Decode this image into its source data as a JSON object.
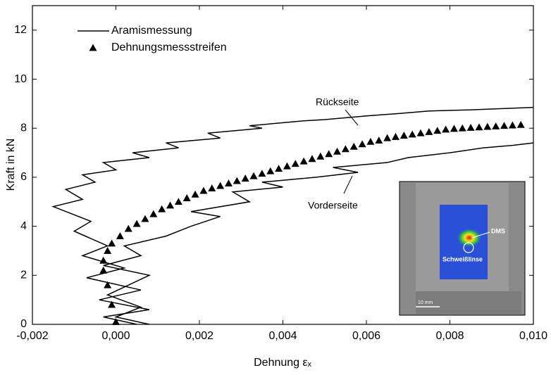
{
  "chart_data": {
    "type": "line",
    "x_label": "Dehnung εₓ",
    "y_label": "Kraft in kN",
    "xlim": [
      -0.002,
      0.01
    ],
    "ylim": [
      0,
      13
    ],
    "xticks": [
      {
        "value": -0.002,
        "label": "-0,002"
      },
      {
        "value": 0,
        "label": "0,000"
      },
      {
        "value": 0.002,
        "label": "0,002"
      },
      {
        "value": 0.004,
        "label": "0,004"
      },
      {
        "value": 0.006,
        "label": "0,006"
      },
      {
        "value": 0.008,
        "label": "0,008"
      },
      {
        "value": 0.01,
        "label": "0,010"
      }
    ],
    "yticks": [
      0,
      2,
      4,
      6,
      8,
      10,
      12
    ],
    "legend": "top-left",
    "annotations": [
      "Rückseite",
      "Vorderseite",
      "DMS",
      "Schweißlinse",
      "10 mm"
    ],
    "series": [
      {
        "name": "Aramismessung",
        "type": "line",
        "color": "#000000",
        "x": [
          0.0005,
          -0.0003,
          0.0008,
          -0.0004,
          0.0006,
          -0.0007,
          0.0002,
          -0.0008,
          -0.0002,
          -0.001,
          -0.0006,
          -0.0015,
          -0.0008,
          -0.0012,
          -0.0005,
          -0.0008,
          0.0,
          -0.0003,
          0.0008,
          0.0004,
          0.0015,
          0.0012,
          0.0025,
          0.0022,
          0.0035,
          0.0032,
          0.0045,
          0.005,
          0.006,
          0.0068,
          0.0075,
          0.0085,
          0.01,
          null,
          0.0008,
          0.0,
          0.0006,
          -0.0002,
          0.0008,
          -0.0003,
          0.0006,
          0.0002,
          0.0012,
          0.0018,
          0.0025,
          0.0018,
          0.0032,
          0.0028,
          0.004,
          0.0035,
          0.0048,
          0.0058,
          0.0052,
          0.0065,
          0.007,
          0.008,
          0.0088,
          0.0095,
          0.01
        ],
        "values": [
          0,
          0.3,
          0.6,
          1.0,
          1.4,
          1.9,
          2.3,
          2.8,
          3.2,
          3.8,
          4.2,
          4.8,
          5.1,
          5.5,
          5.8,
          6.1,
          6.3,
          6.6,
          6.8,
          7.0,
          7.2,
          7.4,
          7.6,
          7.8,
          8.0,
          8.1,
          8.3,
          8.35,
          8.5,
          8.6,
          8.7,
          8.75,
          8.85,
          null,
          0,
          0.3,
          0.7,
          1.2,
          2.0,
          2.4,
          2.8,
          3.2,
          3.6,
          4.0,
          4.4,
          4.6,
          5.0,
          5.4,
          5.6,
          5.8,
          6.0,
          6.2,
          6.4,
          6.6,
          6.8,
          7.0,
          7.2,
          7.3,
          7.4
        ]
      },
      {
        "name": "Dehnungsmessstreifen",
        "type": "scatter",
        "marker": "triangle",
        "color": "#000000",
        "x": [
          0.0,
          -0.0001,
          -0.0002,
          -0.0003,
          -0.0003,
          -0.0002,
          -0.0001,
          0.0001,
          0.0003,
          0.0005,
          0.0007,
          0.0009,
          0.0011,
          0.0013,
          0.0015,
          0.0017,
          0.0019,
          0.0021,
          0.0023,
          0.0025,
          0.0027,
          0.0029,
          0.0031,
          0.0033,
          0.0035,
          0.0037,
          0.0039,
          0.0041,
          0.0043,
          0.0045,
          0.0047,
          0.0049,
          0.0051,
          0.0053,
          0.0055,
          0.0057,
          0.0059,
          0.0061,
          0.0063,
          0.0065,
          0.0067,
          0.0069,
          0.0071,
          0.0073,
          0.0075,
          0.0077,
          0.0079,
          0.0081,
          0.0083,
          0.0085,
          0.0087,
          0.0089,
          0.0091,
          0.0093,
          0.0095,
          0.0097
        ],
        "values": [
          0.1,
          0.8,
          1.6,
          2.2,
          2.6,
          3.0,
          3.3,
          3.6,
          3.9,
          4.1,
          4.3,
          4.5,
          4.7,
          4.85,
          5.0,
          5.15,
          5.3,
          5.45,
          5.55,
          5.65,
          5.75,
          5.85,
          5.95,
          6.05,
          6.15,
          6.25,
          6.35,
          6.45,
          6.55,
          6.65,
          6.75,
          6.85,
          6.95,
          7.05,
          7.15,
          7.25,
          7.35,
          7.45,
          7.5,
          7.6,
          7.65,
          7.7,
          7.75,
          7.8,
          7.85,
          7.9,
          7.95,
          7.98,
          8.0,
          8.02,
          8.04,
          8.06,
          8.08,
          8.1,
          8.12,
          8.14
        ]
      }
    ]
  }
}
